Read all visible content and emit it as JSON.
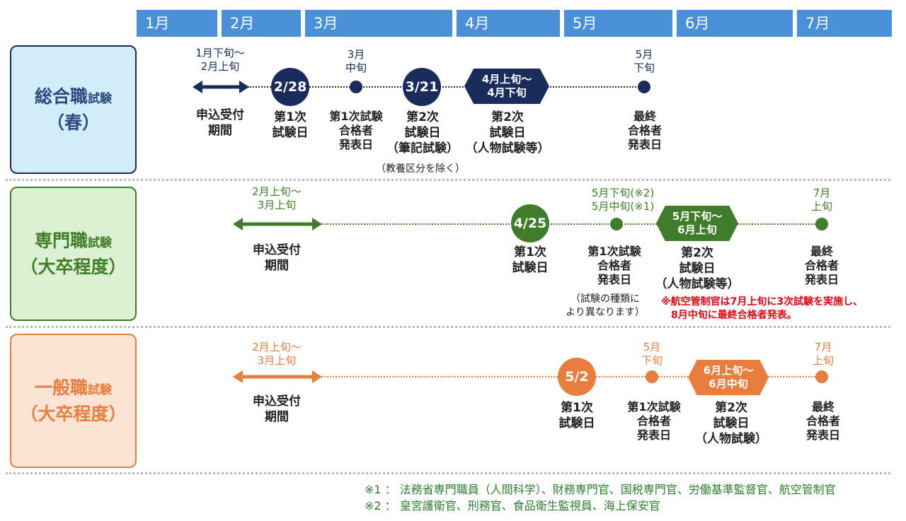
{
  "months": [
    "1月",
    "2月",
    "3月",
    "4月",
    "5月",
    "6月",
    "7月"
  ],
  "colors": {
    "month_bar": "#4a90d9",
    "sogo": "#1a2c5b",
    "senmon": "#3f7d2a",
    "ippan": "#e87d3e",
    "note_red": "#e60012",
    "footnote": "#2e7d32"
  },
  "rows": {
    "sogo": {
      "title1": "総合職",
      "title_small": "試験",
      "title2": "（春）",
      "apply_range": [
        "1月下旬～",
        "2月上旬"
      ],
      "apply_caption": [
        "申込受付",
        "期間"
      ],
      "first_exam_date": "2/28",
      "first_exam_caption": [
        "第1次",
        "試験日"
      ],
      "first_result_time": [
        "3月",
        "中旬"
      ],
      "first_result_caption": [
        "第1次試験",
        "合格者",
        "発表日"
      ],
      "second_written_date": "3/21",
      "second_written_caption": [
        "第2次",
        "試験日",
        "（筆記試験）"
      ],
      "second_written_note": "（教養区分を除く）",
      "second_interview_range": [
        "4月上旬～",
        "4月下旬"
      ],
      "second_interview_caption": [
        "第2次",
        "試験日",
        "（人物試験等）"
      ],
      "final_time": [
        "5月",
        "下旬"
      ],
      "final_caption": [
        "最終",
        "合格者",
        "発表日"
      ]
    },
    "senmon": {
      "title1": "専門職",
      "title_small": "試験",
      "title2": "（大卒程度）",
      "apply_range": [
        "2月上旬～",
        "3月上旬"
      ],
      "apply_caption": [
        "申込受付",
        "期間"
      ],
      "first_exam_date": "4/25",
      "first_exam_caption": [
        "第1次",
        "試験日"
      ],
      "first_result_time": [
        "5月下旬(※2)",
        "5月中旬(※1)"
      ],
      "first_result_caption": [
        "第1次試験",
        "合格者",
        "発表日"
      ],
      "first_result_note": [
        "（試験の種類に",
        "より異なります）"
      ],
      "second_range": [
        "5月下旬～",
        "6月上旬"
      ],
      "second_caption": [
        "第2次",
        "試験日",
        "（人物試験等）"
      ],
      "final_time": [
        "7月",
        "上旬"
      ],
      "final_caption": [
        "最終",
        "合格者",
        "発表日"
      ],
      "red_note": [
        "※航空管制官は7月上旬に3次試験を実施し、",
        "8月中旬に最終合格者発表。"
      ]
    },
    "ippan": {
      "title1": "一般職",
      "title_small": "試験",
      "title2": "（大卒程度）",
      "apply_range": [
        "2月上旬～",
        "3月上旬"
      ],
      "apply_caption": [
        "申込受付",
        "期間"
      ],
      "first_exam_date": "5/2",
      "first_exam_caption": [
        "第1次",
        "試験日"
      ],
      "first_result_time": [
        "5月",
        "下旬"
      ],
      "first_result_caption": [
        "第1次試験",
        "合格者",
        "発表日"
      ],
      "second_range": [
        "6月上旬～",
        "6月中旬"
      ],
      "second_caption": [
        "第2次",
        "試験日",
        "（人物試験）"
      ],
      "final_time": [
        "7月",
        "上旬"
      ],
      "final_caption": [
        "最終",
        "合格者",
        "発表日"
      ]
    }
  },
  "footnotes": [
    "※1 ： 法務省専門職員（人間科学）、財務専門官、国税専門官、労働基準監督官、航空管制官",
    "※2 ： 皇宮護衛官、刑務官、食品衛生監視員、海上保安官"
  ]
}
